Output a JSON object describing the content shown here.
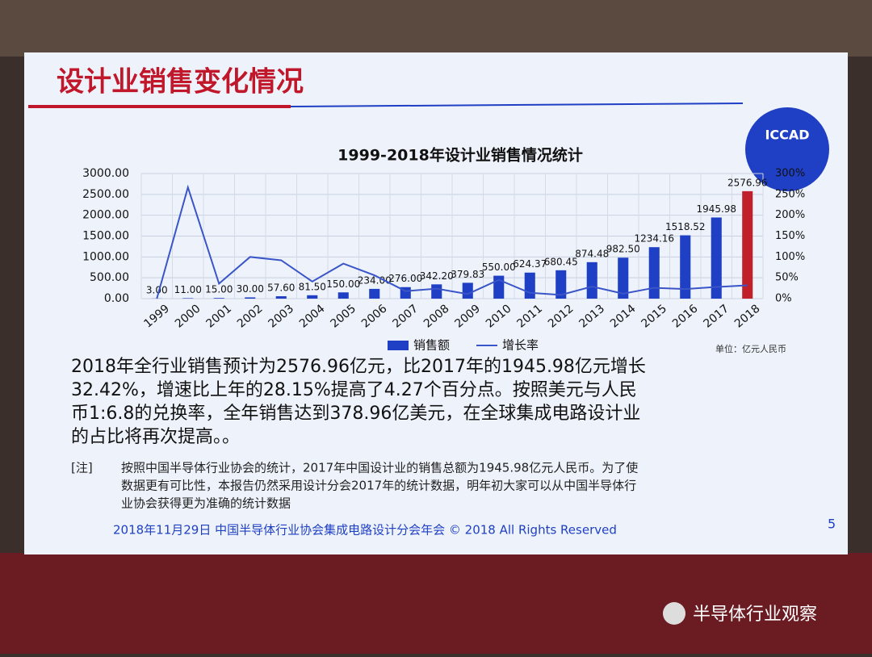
{
  "slide_title": "设计业销售变化情况",
  "logo": "ICCAD",
  "chart_data": {
    "type": "bar",
    "title": "1999-2018年设计业销售情况统计",
    "categories": [
      "1999",
      "2000",
      "2001",
      "2002",
      "2003",
      "2004",
      "2005",
      "2006",
      "2007",
      "2008",
      "2009",
      "2010",
      "2011",
      "2012",
      "2013",
      "2014",
      "2015",
      "2016",
      "2017",
      "2018"
    ],
    "series": [
      {
        "name": "销售额",
        "type": "bar",
        "color": "#1f3fc4",
        "highlight_color": "#c0202a",
        "values": [
          3,
          11,
          15,
          30,
          57.6,
          81.5,
          150,
          234,
          276,
          342.2,
          379.83,
          550,
          624.37,
          680.45,
          874.48,
          982.5,
          1234.16,
          1518.52,
          1945.98,
          2576.96
        ],
        "value_labels": [
          "3.00",
          "11.00",
          "15.00",
          "30.00",
          "57.60",
          "81.50",
          "150.00",
          "234.00",
          "276.00",
          "342.20",
          "379.83",
          "550.00",
          "624.37",
          "680.45",
          "874.48",
          "982.50",
          "1234.16",
          "1518.52",
          "1945.98",
          "2576.96"
        ]
      },
      {
        "name": "增长率",
        "type": "line",
        "color": "#3a55c8",
        "axis": "y2",
        "values": [
          0,
          267,
          36,
          100,
          92,
          41,
          84,
          56,
          18,
          24,
          11,
          45,
          14,
          9,
          29,
          12,
          26,
          23,
          28,
          32
        ]
      }
    ],
    "ylim": [
      0,
      3000
    ],
    "yticks": [
      {
        "value": 0,
        "label": "0.00"
      },
      {
        "value": 500,
        "label": "500.00"
      },
      {
        "value": 1000,
        "label": "1000.00"
      },
      {
        "value": 1500,
        "label": "1500.00"
      },
      {
        "value": 2000,
        "label": "2000.00"
      },
      {
        "value": 2500,
        "label": "2500.00"
      },
      {
        "value": 3000,
        "label": "3000.00"
      }
    ],
    "y2lim": [
      0,
      300
    ],
    "y2ticks": [
      {
        "value": 0,
        "label": "0%"
      },
      {
        "value": 50,
        "label": "50%"
      },
      {
        "value": 100,
        "label": "100%"
      },
      {
        "value": 150,
        "label": "150%"
      },
      {
        "value": 200,
        "label": "200%"
      },
      {
        "value": 250,
        "label": "250%"
      },
      {
        "value": 300,
        "label": "300%"
      }
    ],
    "grid": true,
    "unit_note": "单位：亿元人民币"
  },
  "body": {
    "lines": [
      "2018年全行业销售预计为2576.96亿元，比2017年的1945.98亿元增长",
      "32.42%，增速比上年的28.15%提高了4.27个百分点。按照美元与人民",
      "币1:6.8的兑换率，全年销售达到378.96亿美元，在全球集成电路设计业",
      "的占比将再次提高。。"
    ]
  },
  "note": {
    "tag": "[注]",
    "lines": [
      "按照中国半导体行业协会的统计，2017年中国设计业的销售总额为1945.98亿元人民币。为了使",
      "数据更有可比性，本报告仍然采用设计分会2017年的统计数据，明年初大家可以从中国半导体行",
      "业协会获得更为准确的统计数据"
    ]
  },
  "footer": "2018年11月29日  中国半导体行业协会集成电路设计分会年会 © 2018 All Rights Reserved",
  "page_number": "5",
  "watermark": "半导体行业观察"
}
